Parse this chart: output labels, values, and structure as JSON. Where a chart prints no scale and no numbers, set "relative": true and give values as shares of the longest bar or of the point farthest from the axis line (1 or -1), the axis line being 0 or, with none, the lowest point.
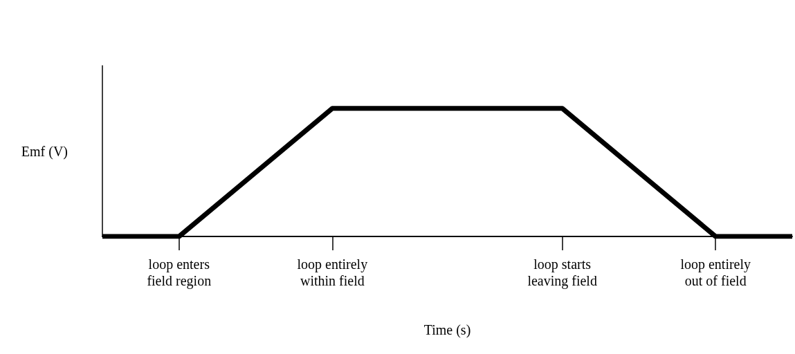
{
  "chart_data": {
    "type": "line",
    "relative": true,
    "xlabel": "Time (s)",
    "ylabel": "Emf (V)",
    "categories": [
      null,
      null,
      null,
      null,
      "loop enters\nfield region",
      null,
      null,
      null,
      null,
      null,
      null,
      null,
      "loop entirely\nwithin field",
      null,
      null,
      null,
      null,
      null,
      null,
      null,
      null,
      null,
      null,
      null,
      "loop starts\nleaving field",
      null,
      null,
      null,
      null,
      null,
      null,
      null,
      "loop entirely\nout of field",
      null,
      null,
      null,
      null
    ],
    "series": [
      {
        "color": "#000000",
        "values": [
          0,
          null,
          null,
          null,
          0,
          null,
          null,
          null,
          null,
          null,
          null,
          null,
          1,
          null,
          null,
          null,
          null,
          null,
          null,
          null,
          null,
          null,
          null,
          null,
          1,
          null,
          null,
          null,
          null,
          null,
          null,
          null,
          0,
          null,
          null,
          null,
          0
        ]
      }
    ],
    "grid": false,
    "marker": "none",
    "line_style": "solid",
    "tick_labels": "x"
  }
}
